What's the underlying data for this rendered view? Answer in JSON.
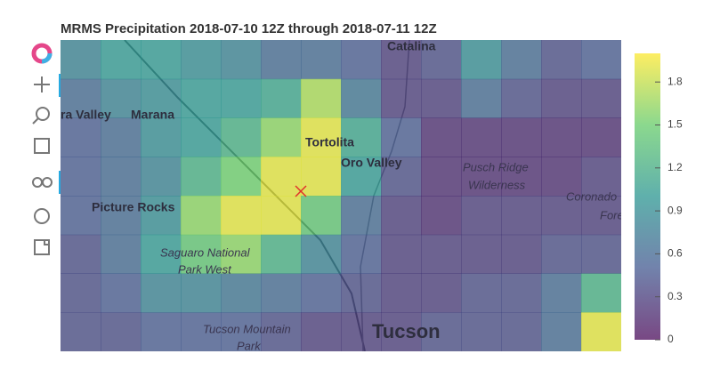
{
  "chart_data": {
    "type": "heatmap",
    "title": "MRMS Precipitation 2018-07-10 12Z through 2018-07-11 12Z",
    "clim": [
      0,
      2
    ],
    "cticks": [
      0,
      0.3,
      0.6,
      0.9,
      1.2,
      1.5,
      1.8
    ],
    "colormap": [
      "#440154",
      "#3b528b",
      "#21918c",
      "#5ec962",
      "#fde725"
    ],
    "z": [
      [
        0.8,
        1.0,
        1.0,
        0.9,
        0.8,
        0.6,
        0.6,
        0.5,
        0.3,
        0.4,
        0.9,
        0.6,
        0.4,
        0.5
      ],
      [
        0.6,
        0.8,
        0.9,
        1.0,
        1.0,
        1.1,
        1.7,
        0.7,
        0.3,
        0.3,
        0.6,
        0.4,
        0.3,
        0.3
      ],
      [
        0.5,
        0.6,
        0.9,
        1.0,
        1.2,
        1.6,
        1.9,
        1.1,
        0.5,
        0.2,
        0.2,
        0.2,
        0.2,
        0.2
      ],
      [
        0.5,
        0.6,
        0.8,
        1.2,
        1.5,
        1.9,
        1.9,
        1.0,
        0.4,
        0.2,
        0.2,
        0.2,
        0.2,
        0.3
      ],
      [
        0.5,
        0.6,
        0.9,
        1.6,
        1.9,
        1.9,
        1.4,
        0.6,
        0.3,
        0.2,
        0.3,
        0.3,
        0.3,
        0.3
      ],
      [
        0.4,
        0.6,
        1.0,
        1.4,
        1.6,
        1.2,
        0.8,
        0.5,
        0.3,
        0.3,
        0.3,
        0.3,
        0.4,
        0.4
      ],
      [
        0.4,
        0.5,
        0.8,
        0.8,
        0.7,
        0.6,
        0.5,
        0.4,
        0.3,
        0.3,
        0.4,
        0.4,
        0.6,
        1.2
      ],
      [
        0.4,
        0.4,
        0.5,
        0.5,
        0.5,
        0.4,
        0.3,
        0.3,
        0.3,
        0.4,
        0.4,
        0.4,
        0.6,
        1.9
      ]
    ],
    "map_labels": [
      "Catalina",
      "ra Valley",
      "Marana",
      "Tortolita",
      "Oro Valley",
      "Pusch Ridge",
      "Wilderness",
      "Coronado",
      "Fore",
      "Picture Rocks",
      "Saguaro National",
      "Park West",
      "Tucson Mountain",
      "Park",
      "Tucson"
    ]
  }
}
